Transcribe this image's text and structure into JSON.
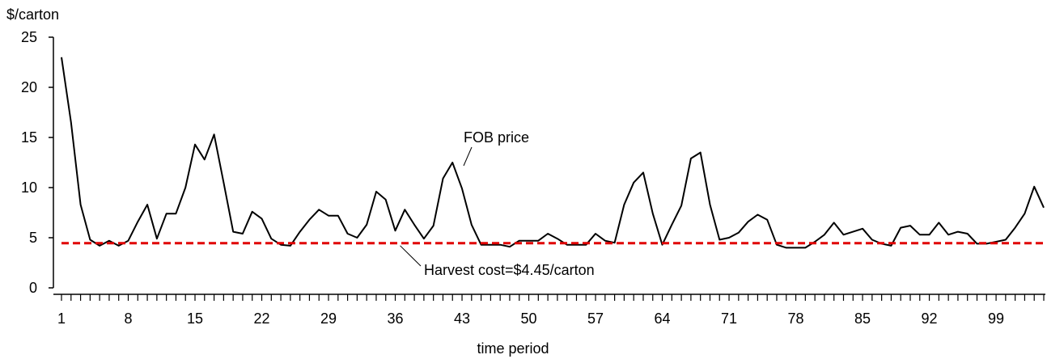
{
  "chart_data": {
    "type": "line",
    "title": "",
    "xlabel": "time period",
    "ylabel": "$/carton",
    "xlim": [
      1,
      104
    ],
    "ylim": [
      0,
      25
    ],
    "yticks": [
      0,
      5,
      10,
      15,
      20,
      25
    ],
    "xtick_labels": [
      1,
      8,
      15,
      22,
      29,
      36,
      43,
      50,
      57,
      64,
      71,
      78,
      85,
      92,
      99
    ],
    "grid": false,
    "legend": "none",
    "series": [
      {
        "color": "#000000",
        "x": [
          1,
          2,
          3,
          4,
          5,
          6,
          7,
          8,
          9,
          10,
          11,
          12,
          13,
          14,
          15,
          16,
          17,
          18,
          19,
          20,
          21,
          22,
          23,
          24,
          25,
          26,
          27,
          28,
          29,
          30,
          31,
          32,
          33,
          34,
          35,
          36,
          37,
          38,
          39,
          40,
          41,
          42,
          43,
          44,
          45,
          46,
          47,
          48,
          49,
          50,
          51,
          52,
          53,
          54,
          55,
          56,
          57,
          58,
          59,
          60,
          61,
          62,
          63,
          64,
          65,
          66,
          67,
          68,
          69,
          70,
          71,
          72,
          73,
          74,
          75,
          76,
          77,
          78,
          79,
          80,
          81,
          82,
          83,
          84,
          85,
          86,
          87,
          88,
          89,
          90,
          91,
          92,
          93,
          94,
          95,
          96,
          97,
          98,
          99,
          100,
          101,
          102,
          103,
          104
        ],
        "values": [
          23.0,
          16.5,
          8.3,
          4.8,
          4.2,
          4.7,
          4.2,
          4.7,
          6.6,
          8.3,
          4.9,
          7.4,
          7.4,
          10.0,
          14.3,
          12.8,
          15.3,
          10.5,
          5.6,
          5.4,
          7.6,
          6.9,
          4.9,
          4.3,
          4.2,
          5.6,
          6.8,
          7.8,
          7.2,
          7.2,
          5.4,
          5.0,
          6.3,
          9.6,
          8.8,
          5.7,
          7.8,
          6.3,
          4.9,
          6.2,
          10.9,
          12.5,
          9.9,
          6.3,
          4.3,
          4.3,
          4.3,
          4.1,
          4.7,
          4.7,
          4.7,
          5.4,
          4.9,
          4.3,
          4.3,
          4.3,
          5.4,
          4.7,
          4.5,
          8.3,
          10.5,
          11.5,
          7.4,
          4.3,
          6.3,
          8.2,
          12.9,
          13.5,
          8.3,
          4.8,
          5.0,
          5.5,
          6.6,
          7.3,
          6.8,
          4.3,
          4.0,
          4.0,
          4.0,
          4.6,
          5.3,
          6.5,
          5.3,
          5.6,
          5.9,
          4.8,
          4.4,
          4.2,
          6.0,
          6.2,
          5.3,
          5.3,
          6.5,
          5.3,
          5.6,
          5.4,
          4.4,
          4.4,
          4.6,
          4.8,
          6.0,
          7.4,
          10.1,
          8.0
        ]
      },
      {
        "color": "#e00000",
        "style": "dashed",
        "x": [
          1,
          104
        ],
        "values": [
          4.45,
          4.45
        ]
      }
    ],
    "annotations": [
      {
        "text": "FOB price",
        "x": 43,
        "y": 12.5
      },
      {
        "text": "Harvest cost=$4.45/carton",
        "x": 36,
        "y": 4.45
      }
    ]
  }
}
